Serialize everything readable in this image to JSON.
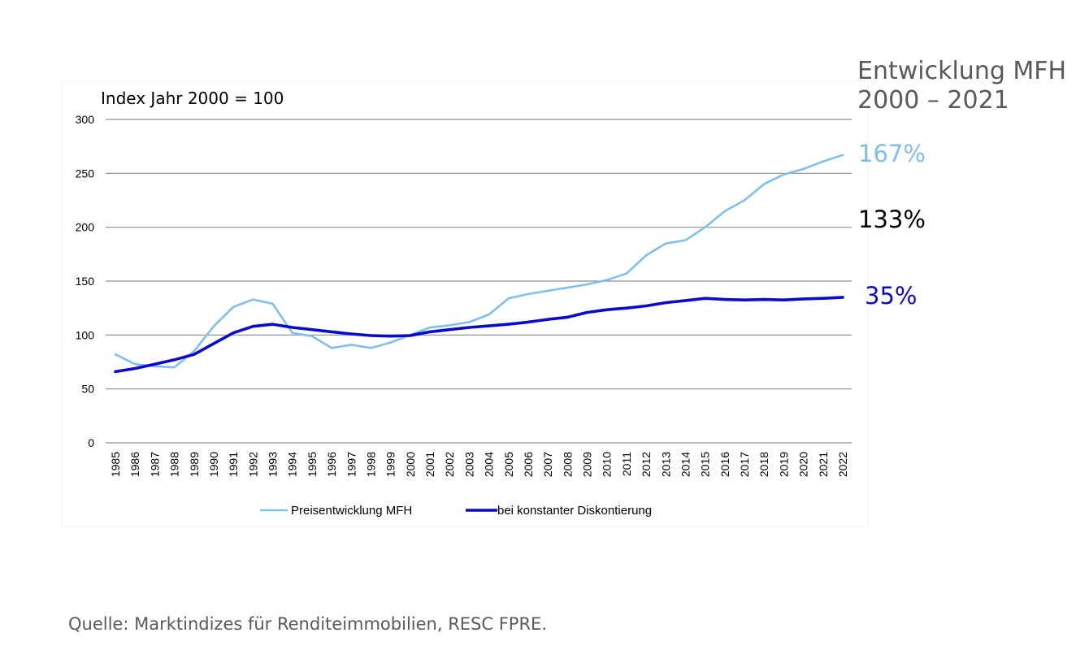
{
  "chart_data": {
    "type": "line",
    "title": "",
    "index_note": "Index Jahr 2000 = 100",
    "xlabel": "",
    "ylabel": "",
    "ylim": [
      0,
      300
    ],
    "yticks": [
      0,
      50,
      100,
      150,
      200,
      250,
      300
    ],
    "grid": true,
    "legend_position": "bottom",
    "categories": [
      "1985",
      "1986",
      "1987",
      "1988",
      "1989",
      "1990",
      "1991",
      "1992",
      "1993",
      "1994",
      "1995",
      "1996",
      "1997",
      "1998",
      "1999",
      "2000",
      "2001",
      "2002",
      "2003",
      "2004",
      "2005",
      "2006",
      "2007",
      "2008",
      "2009",
      "2010",
      "2011",
      "2012",
      "2013",
      "2014",
      "2015",
      "2016",
      "2017",
      "2018",
      "2019",
      "2020",
      "2021",
      "2022"
    ],
    "series": [
      {
        "name": "Preisentwicklung MFH",
        "color": "#7fbff0",
        "values": [
          82,
          73,
          71,
          70,
          85,
          108,
          126,
          133,
          129,
          102,
          99,
          88,
          91,
          88,
          93,
          100,
          107,
          109,
          112,
          119,
          134,
          138,
          141,
          144,
          147,
          151,
          157,
          174,
          185,
          188,
          200,
          215,
          225,
          240,
          249,
          254,
          261,
          267
        ]
      },
      {
        "name": "bei konstanter Diskontierung",
        "color": "#0a0acc",
        "values": [
          66,
          69,
          73,
          77,
          82,
          92,
          102,
          108,
          110,
          107,
          105,
          103,
          101,
          99.5,
          99,
          99.5,
          103,
          105,
          107,
          108.5,
          110,
          112,
          114.5,
          116.5,
          121,
          123.5,
          125,
          127,
          130,
          132,
          134,
          133,
          132.5,
          133,
          132.5,
          133.5,
          134,
          135
        ]
      }
    ]
  },
  "side_title": {
    "line1": "Entwicklung MFH",
    "line2": "2000 – 2021"
  },
  "annotations": [
    {
      "text": "167%",
      "color": "#7fbff0"
    },
    {
      "text": "133%",
      "color": "#000000"
    },
    {
      "text": "35%",
      "color": "#0a0acc"
    }
  ],
  "source": "Quelle: Marktindizes für Renditeimmobilien, RESC FPRE."
}
